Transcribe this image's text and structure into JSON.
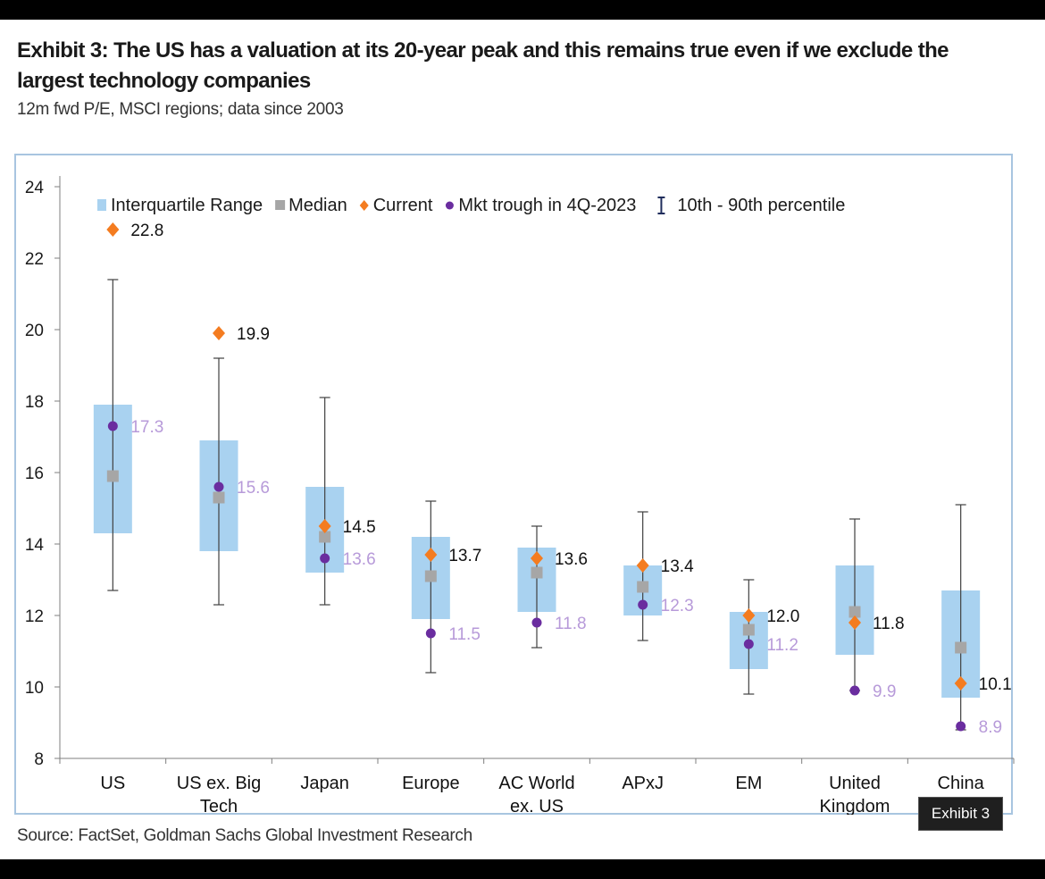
{
  "title": "Exhibit 3: The US has a valuation at its 20-year peak and this remains true even if we exclude the largest technology companies",
  "subtitle": "12m fwd P/E, MSCI regions; data since 2003",
  "source": "Source: FactSet, Goldman Sachs Global Investment Research",
  "exhibit_tag": "Exhibit 3",
  "chart_data": {
    "type": "box",
    "ylim": [
      8,
      24
    ],
    "yticks": [
      8,
      10,
      12,
      14,
      16,
      18,
      20,
      22,
      24
    ],
    "legend": {
      "placement": "top",
      "entries": [
        {
          "key": "iqr",
          "label": "Interquartile Range"
        },
        {
          "key": "median",
          "label": "Median"
        },
        {
          "key": "current",
          "label": "Current"
        },
        {
          "key": "trough",
          "label": "Mkt trough in 4Q-2023"
        },
        {
          "key": "pct",
          "label": "10th - 90th percentile"
        }
      ]
    },
    "colors": {
      "iqr": "#a9d2f0",
      "median": "#a6a6a6",
      "current": "#f47c20",
      "trough": "#6a2d9f",
      "trough_label": "#b79ad9",
      "whisker": "#404040"
    },
    "categories": [
      {
        "label": [
          "US"
        ],
        "p10": 12.7,
        "q1": 14.3,
        "median": 15.9,
        "q3": 17.9,
        "p90": 21.4,
        "current": 22.8,
        "trough": 17.3,
        "current_label": "22.8",
        "trough_label": "17.3"
      },
      {
        "label": [
          "US ex. Big",
          "Tech"
        ],
        "p10": 12.3,
        "q1": 13.8,
        "median": 15.3,
        "q3": 16.9,
        "p90": 19.2,
        "current": 19.9,
        "trough": 15.6,
        "current_label": "19.9",
        "trough_label": "15.6"
      },
      {
        "label": [
          "Japan"
        ],
        "p10": 12.3,
        "q1": 13.2,
        "median": 14.2,
        "q3": 15.6,
        "p90": 18.1,
        "current": 14.5,
        "trough": 13.6,
        "current_label": "14.5",
        "trough_label": "13.6"
      },
      {
        "label": [
          "Europe"
        ],
        "p10": 10.4,
        "q1": 11.9,
        "median": 13.1,
        "q3": 14.2,
        "p90": 15.2,
        "current": 13.7,
        "trough": 11.5,
        "current_label": "13.7",
        "trough_label": "11.5"
      },
      {
        "label": [
          "AC World",
          "ex. US"
        ],
        "p10": 11.1,
        "q1": 12.1,
        "median": 13.2,
        "q3": 13.9,
        "p90": 14.5,
        "current": 13.6,
        "trough": 11.8,
        "current_label": "13.6",
        "trough_label": "11.8"
      },
      {
        "label": [
          "APxJ"
        ],
        "p10": 11.3,
        "q1": 12.0,
        "median": 12.8,
        "q3": 13.4,
        "p90": 14.9,
        "current": 13.4,
        "trough": 12.3,
        "current_label": "13.4",
        "trough_label": "12.3"
      },
      {
        "label": [
          "EM"
        ],
        "p10": 9.8,
        "q1": 10.5,
        "median": 11.6,
        "q3": 12.1,
        "p90": 13.0,
        "current": 12.0,
        "trough": 11.2,
        "current_label": "12.0",
        "trough_label": "11.2"
      },
      {
        "label": [
          "United",
          "Kingdom"
        ],
        "p10": 9.9,
        "q1": 10.9,
        "median": 12.1,
        "q3": 13.4,
        "p90": 14.7,
        "current": 11.8,
        "trough": 9.9,
        "current_label": "11.8",
        "trough_label": "9.9"
      },
      {
        "label": [
          "China"
        ],
        "p10": 8.8,
        "q1": 9.7,
        "median": 11.1,
        "q3": 12.7,
        "p90": 15.1,
        "current": 10.1,
        "trough": 8.9,
        "current_label": "10.1",
        "trough_label": "8.9"
      }
    ]
  }
}
